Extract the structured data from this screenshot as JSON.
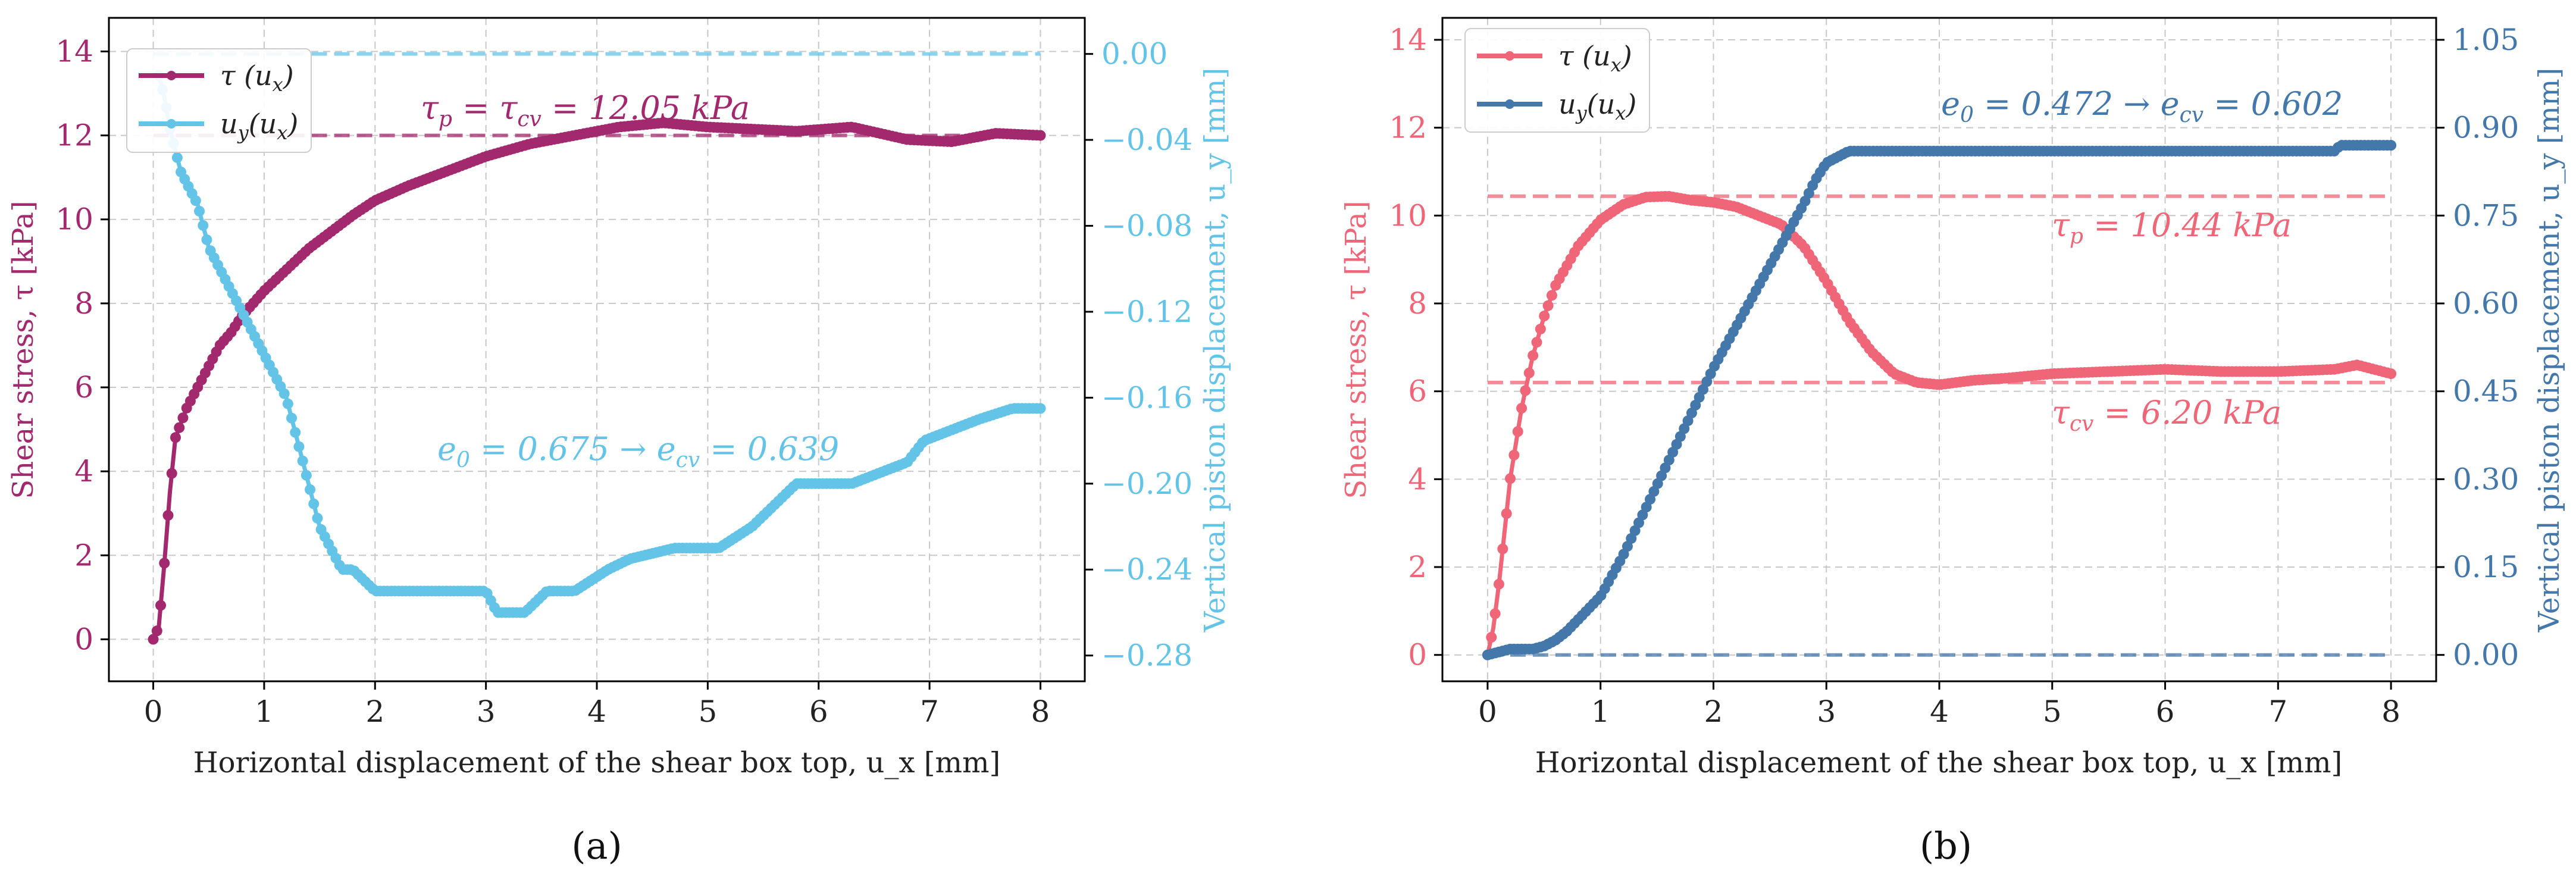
{
  "figure": {
    "panels": [
      "(a)",
      "(b)"
    ]
  },
  "chart_data": [
    {
      "type": "line",
      "panel_label": "(a)",
      "xlabel": "Horizontal displacement of the shear box top, u_x [mm]",
      "ylabel_left": "Shear stress, τ [kPa]",
      "ylabel_right": "Vertical piston displacement, u_y [mm]",
      "xlim": [
        -0.4,
        8.4
      ],
      "ylim_left": [
        -1.0,
        14.8
      ],
      "ylim_right": [
        -0.292,
        0.0168
      ],
      "xticks": [
        0,
        1,
        2,
        3,
        4,
        5,
        6,
        7,
        8
      ],
      "yticks_left": [
        0,
        2,
        4,
        6,
        8,
        10,
        12,
        14
      ],
      "yticks_right": [
        -0.28,
        -0.24,
        -0.2,
        -0.16,
        -0.12,
        -0.08,
        -0.04,
        0.0
      ],
      "yticklabels_right": [
        "−0.28",
        "−0.24",
        "−0.20",
        "−0.16",
        "−0.12",
        "−0.08",
        "−0.04",
        "0.00"
      ],
      "grid": true,
      "legend_position": "top-left",
      "colors": {
        "tau": "#a3296e",
        "uy": "#64c4e8"
      },
      "legend": [
        "τ (u_x)",
        "u_y(u_x)"
      ],
      "annotations": {
        "tau": "τ_p = τ_cv = 12.05 kPa",
        "void": "e_0 = 0.675 → e_cv = 0.639"
      },
      "hlines": [
        {
          "axis": "left",
          "y": 12.0,
          "color": "#a3296e"
        },
        {
          "axis": "right",
          "y": 0.0,
          "color": "#64c4e8"
        }
      ],
      "series": [
        {
          "name": "τ (u_x)",
          "axis": "left",
          "x": [
            0,
            0.05,
            0.1,
            0.15,
            0.2,
            0.3,
            0.4,
            0.5,
            0.6,
            0.7,
            0.8,
            1.0,
            1.2,
            1.4,
            1.6,
            1.8,
            2.0,
            2.3,
            2.6,
            3.0,
            3.4,
            3.8,
            4.2,
            4.6,
            5.0,
            5.4,
            5.8,
            6.3,
            6.8,
            7.2,
            7.6,
            8.0
          ],
          "y": [
            0,
            0.3,
            1.8,
            3.5,
            4.8,
            5.5,
            6.0,
            6.5,
            7.0,
            7.3,
            7.7,
            8.3,
            8.8,
            9.3,
            9.7,
            10.1,
            10.45,
            10.8,
            11.1,
            11.5,
            11.8,
            12.0,
            12.2,
            12.3,
            12.2,
            12.15,
            12.1,
            12.2,
            11.9,
            11.85,
            12.05,
            12.0
          ]
        },
        {
          "name": "u_y(u_x)",
          "axis": "right",
          "x": [
            0.05,
            0.1,
            0.15,
            0.2,
            0.25,
            0.3,
            0.35,
            0.4,
            0.45,
            0.5,
            0.6,
            0.7,
            0.8,
            0.9,
            1.0,
            1.1,
            1.2,
            1.3,
            1.4,
            1.5,
            1.6,
            1.7,
            1.8,
            1.9,
            2.0,
            2.5,
            3.0,
            3.1,
            3.35,
            3.55,
            3.8,
            4.1,
            4.3,
            4.7,
            5.1,
            5.4,
            5.8,
            6.3,
            6.8,
            6.95,
            7.2,
            7.45,
            7.75,
            8.0
          ],
          "y": [
            -0.01,
            -0.02,
            -0.035,
            -0.045,
            -0.055,
            -0.06,
            -0.065,
            -0.07,
            -0.08,
            -0.09,
            -0.1,
            -0.11,
            -0.12,
            -0.13,
            -0.14,
            -0.15,
            -0.16,
            -0.18,
            -0.2,
            -0.22,
            -0.23,
            -0.24,
            -0.24,
            -0.245,
            -0.25,
            -0.25,
            -0.25,
            -0.26,
            -0.26,
            -0.25,
            -0.25,
            -0.24,
            -0.235,
            -0.23,
            -0.23,
            -0.22,
            -0.2,
            -0.2,
            -0.19,
            -0.18,
            -0.175,
            -0.17,
            -0.165,
            -0.165
          ]
        }
      ]
    },
    {
      "type": "line",
      "panel_label": "(b)",
      "xlabel": "Horizontal displacement of the shear box top, u_x [mm]",
      "ylabel_left": "Shear stress, τ [kPa]",
      "ylabel_right": "Vertical piston displacement, u_y [mm]",
      "xlim": [
        -0.4,
        8.4
      ],
      "ylim_left": [
        -0.6,
        14.5
      ],
      "ylim_right": [
        -0.045,
        1.0875
      ],
      "xticks": [
        0,
        1,
        2,
        3,
        4,
        5,
        6,
        7,
        8
      ],
      "yticks_left": [
        0,
        2,
        4,
        6,
        8,
        10,
        12,
        14
      ],
      "yticks_right": [
        0.0,
        0.15,
        0.3,
        0.45,
        0.6,
        0.75,
        0.9,
        1.05
      ],
      "yticklabels_right": [
        "0.00",
        "0.15",
        "0.30",
        "0.45",
        "0.60",
        "0.75",
        "0.90",
        "1.05"
      ],
      "grid": true,
      "legend_position": "top-left",
      "colors": {
        "tau": "#ee6677",
        "uy": "#4477aa"
      },
      "legend": [
        "τ (u_x)",
        "u_y(u_x)"
      ],
      "annotations": {
        "void": "e_0 = 0.472 → e_cv = 0.602",
        "tau_p": "τ_p = 10.44 kPa",
        "tau_cv": "τ_cv = 6.20 kPa"
      },
      "hlines": [
        {
          "axis": "left",
          "y": 10.44,
          "color": "#ee6677"
        },
        {
          "axis": "left",
          "y": 6.2,
          "color": "#ee6677"
        },
        {
          "axis": "right",
          "y": 0.0,
          "color": "#4477aa"
        }
      ],
      "series": [
        {
          "name": "τ (u_x)",
          "axis": "left",
          "x": [
            0,
            0.05,
            0.1,
            0.15,
            0.2,
            0.3,
            0.4,
            0.5,
            0.6,
            0.8,
            1.0,
            1.2,
            1.4,
            1.6,
            1.8,
            2.0,
            2.2,
            2.4,
            2.6,
            2.8,
            3.0,
            3.2,
            3.4,
            3.6,
            3.8,
            4.0,
            4.3,
            4.6,
            5.0,
            5.5,
            6.0,
            6.5,
            7.0,
            7.5,
            7.7,
            8.0
          ],
          "y": [
            0,
            0.6,
            1.6,
            2.8,
            4.0,
            5.6,
            6.8,
            7.7,
            8.4,
            9.3,
            9.9,
            10.25,
            10.42,
            10.44,
            10.35,
            10.3,
            10.2,
            10.0,
            9.8,
            9.3,
            8.5,
            7.6,
            6.9,
            6.4,
            6.2,
            6.15,
            6.25,
            6.3,
            6.4,
            6.45,
            6.5,
            6.45,
            6.45,
            6.5,
            6.6,
            6.4
          ]
        },
        {
          "name": "u_y(u_x)",
          "axis": "right",
          "x": [
            0,
            0.1,
            0.2,
            0.3,
            0.4,
            0.5,
            0.6,
            0.7,
            0.8,
            0.9,
            1.0,
            1.2,
            1.4,
            1.6,
            1.8,
            2.0,
            2.2,
            2.4,
            2.6,
            2.8,
            2.9,
            3.0,
            3.1,
            3.2,
            4.0,
            5.0,
            6.0,
            7.0,
            7.5,
            7.55,
            8.0
          ],
          "y": [
            0.0,
            0.005,
            0.01,
            0.01,
            0.01,
            0.015,
            0.025,
            0.04,
            0.06,
            0.08,
            0.1,
            0.17,
            0.25,
            0.33,
            0.41,
            0.49,
            0.56,
            0.63,
            0.7,
            0.77,
            0.81,
            0.84,
            0.85,
            0.86,
            0.86,
            0.86,
            0.86,
            0.86,
            0.86,
            0.87,
            0.87
          ]
        }
      ]
    }
  ]
}
